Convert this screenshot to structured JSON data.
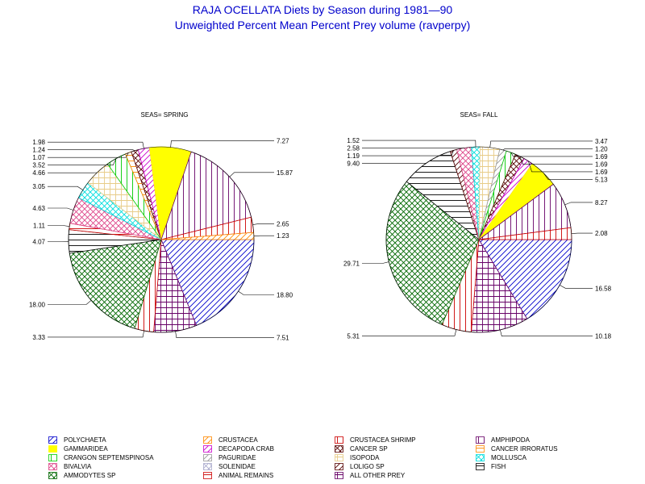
{
  "title": "RAJA OCELLATA Diets by Season during 1981—90",
  "subtitle": "Unweighted Percent Mean Percent Prey  volume (ravperpy)",
  "chart_data": {
    "type": "pie",
    "categories": [
      {
        "name": "POLYCHAETA",
        "color": "#0000cc",
        "pattern": "diag-r"
      },
      {
        "name": "CRUSTACEA",
        "color": "#ff8800",
        "pattern": "diag-r"
      },
      {
        "name": "CRUSTACEA SHRIMP",
        "color": "#cc0000",
        "pattern": "vert"
      },
      {
        "name": "AMPHIPODA",
        "color": "#660066",
        "pattern": "vert"
      },
      {
        "name": "GAMMARIDEA",
        "color": "#ffff00",
        "pattern": "solid"
      },
      {
        "name": "DECAPODA CRAB",
        "color": "#cc00cc",
        "pattern": "diag-r"
      },
      {
        "name": "CANCER SP",
        "color": "#550000",
        "pattern": "cross-diag"
      },
      {
        "name": "CANCER IRRORATUS",
        "color": "#ff8800",
        "pattern": "horiz"
      },
      {
        "name": "CRANGON SEPTEMSPINOSA",
        "color": "#00cc00",
        "pattern": "vert"
      },
      {
        "name": "PAGURIDAE",
        "color": "#999999",
        "pattern": "diag-r"
      },
      {
        "name": "ISOPODA",
        "color": "#e8cc88",
        "pattern": "grid"
      },
      {
        "name": "MOLLUSCA",
        "color": "#00dddd",
        "pattern": "cross-diag"
      },
      {
        "name": "BIVALVIA",
        "color": "#dd4488",
        "pattern": "cross-diag"
      },
      {
        "name": "SOLENIDAE",
        "color": "#aaaacc",
        "pattern": "cross-diag"
      },
      {
        "name": "LOLIGO SP",
        "color": "#550000",
        "pattern": "diag-r"
      },
      {
        "name": "FISH",
        "color": "#000000",
        "pattern": "horiz"
      },
      {
        "name": "AMMODYTES SP",
        "color": "#006600",
        "pattern": "cross-diag"
      },
      {
        "name": "ANIMAL REMAINS",
        "color": "#cc0000",
        "pattern": "horiz"
      },
      {
        "name": "ALL OTHER PREY",
        "color": "#660066",
        "pattern": "grid"
      }
    ],
    "pies": [
      {
        "title": "SEAS= SPRING",
        "slices": [
          {
            "category": "POLYCHAETA",
            "value": 18.8,
            "label": "18.80"
          },
          {
            "category": "ALL OTHER PREY",
            "value": 7.51,
            "label": "7.51"
          },
          {
            "category": "CRUSTACEA SHRIMP",
            "value": 3.33,
            "label": "3.33"
          },
          {
            "category": "AMMODYTES SP",
            "value": 18.0,
            "label": "18.00"
          },
          {
            "category": "FISH",
            "value": 4.07,
            "label": "4.07"
          },
          {
            "category": "ANIMAL REMAINS",
            "value": 1.11,
            "label": "1.11"
          },
          {
            "category": "BIVALVIA",
            "value": 4.63,
            "label": "4.63"
          },
          {
            "category": "MOLLUSCA",
            "value": 3.05,
            "label": "3.05"
          },
          {
            "category": "ISOPODA",
            "value": 4.66,
            "label": "4.66"
          },
          {
            "category": "CRANGON SEPTEMSPINOSA",
            "value": 3.52,
            "label": "3.52"
          },
          {
            "category": "CANCER IRRORATUS",
            "value": 1.07,
            "label": "1.07"
          },
          {
            "category": "CANCER SP",
            "value": 1.24,
            "label": "1.24"
          },
          {
            "category": "DECAPODA CRAB",
            "value": 1.98,
            "label": "1.98"
          },
          {
            "category": "GAMMARIDEA",
            "value": 7.27,
            "label": "7.27"
          },
          {
            "category": "AMPHIPODA",
            "value": 15.87,
            "label": "15.87"
          },
          {
            "category": "CRUSTACEA SHRIMP",
            "value": 2.65,
            "label": "2.65"
          },
          {
            "category": "CRUSTACEA",
            "value": 1.23,
            "label": "1.23"
          }
        ]
      },
      {
        "title": "SEAS= FALL",
        "slices": [
          {
            "category": "POLYCHAETA",
            "value": 16.58,
            "label": "16.58"
          },
          {
            "category": "ALL OTHER PREY",
            "value": 10.18,
            "label": "10.18"
          },
          {
            "category": "CRUSTACEA SHRIMP",
            "value": 5.31,
            "label": "5.31"
          },
          {
            "category": "AMMODYTES SP",
            "value": 29.71,
            "label": "29.71"
          },
          {
            "category": "FISH",
            "value": 9.4,
            "label": "9.40"
          },
          {
            "category": "LOLIGO SP",
            "value": 1.19,
            "label": "1.19"
          },
          {
            "category": "BIVALVIA",
            "value": 2.58,
            "label": "2.58"
          },
          {
            "category": "MOLLUSCA",
            "value": 1.52,
            "label": "1.52"
          },
          {
            "category": "ISOPODA",
            "value": 3.47,
            "label": "3.47"
          },
          {
            "category": "PAGURIDAE",
            "value": 1.2,
            "label": "1.20"
          },
          {
            "category": "CRANGON SEPTEMSPINOSA",
            "value": 1.69,
            "label": "1.69"
          },
          {
            "category": "CANCER SP",
            "value": 1.69,
            "label": "1.69"
          },
          {
            "category": "DECAPODA CRAB",
            "value": 1.69,
            "label": "1.69"
          },
          {
            "category": "GAMMARIDEA",
            "value": 5.13,
            "label": "5.13"
          },
          {
            "category": "AMPHIPODA",
            "value": 8.27,
            "label": "8.27"
          },
          {
            "category": "CRUSTACEA SHRIMP",
            "value": 2.08,
            "label": "2.08"
          }
        ]
      }
    ],
    "legend_placement": "bottom"
  }
}
